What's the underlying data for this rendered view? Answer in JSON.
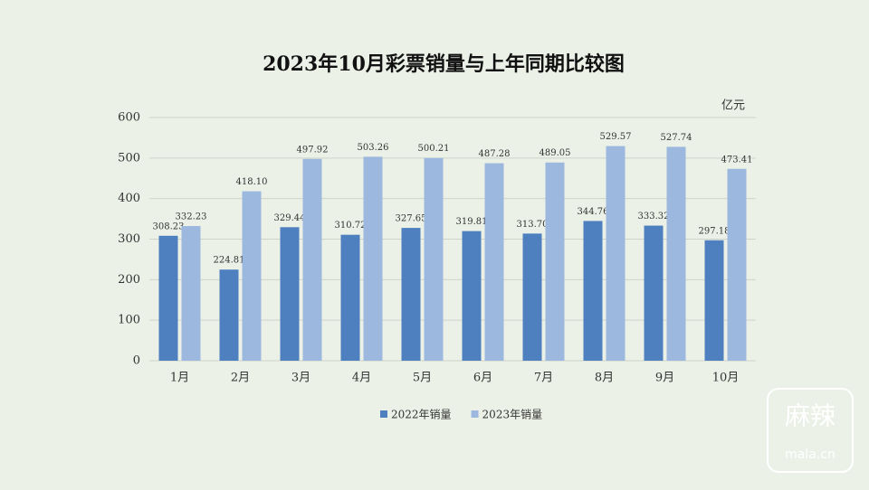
{
  "chart_data": {
    "type": "bar",
    "title": "2023年10月彩票销量与上年同期比较图",
    "y_unit": "亿元",
    "categories": [
      "1月",
      "2月",
      "3月",
      "4月",
      "5月",
      "6月",
      "7月",
      "8月",
      "9月",
      "10月"
    ],
    "series": [
      {
        "name": "2022年销量",
        "color": "#4e7fbf",
        "values": [
          308.23,
          224.81,
          329.44,
          310.72,
          327.65,
          319.81,
          313.7,
          344.76,
          333.32,
          297.18
        ],
        "value_labels": [
          "308.23",
          "224.81",
          "329.44",
          "310.72",
          "327.65",
          "319.81",
          "313.70",
          "344.76",
          "333.32",
          "297.18"
        ]
      },
      {
        "name": "2023年销量",
        "color": "#9cb8df",
        "values": [
          332.23,
          418.1,
          497.92,
          503.26,
          500.21,
          487.28,
          489.05,
          529.57,
          527.74,
          473.41
        ],
        "value_labels": [
          "332.23",
          "418.10",
          "497.92",
          "503.26",
          "500.21",
          "487.28",
          "489.05",
          "529.57",
          "527.74",
          "473.41"
        ]
      }
    ],
    "ylim": [
      0,
      600
    ],
    "yticks": [
      0,
      100,
      200,
      300,
      400,
      500,
      600
    ],
    "grid": true,
    "legend": "bottom"
  },
  "watermark": {
    "title": "麻辣",
    "site": "mala.cn"
  }
}
